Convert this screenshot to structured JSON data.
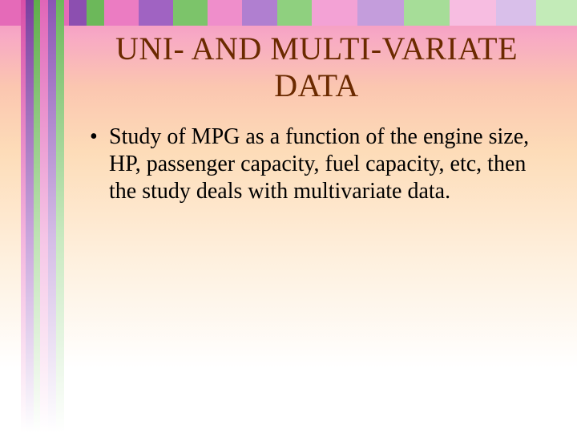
{
  "slide": {
    "title": "UNI- AND MULTI-VARIATE DATA",
    "bullet_1": "Study of MPG as a function of the engine size, HP, passenger capacity, fuel capacity, etc, then the study deals with multivariate data."
  },
  "colors": {
    "title_color": "#6b2a00",
    "body_text_color": "#000000",
    "bg_gradient_top": "#f18bbf",
    "bg_gradient_bottom": "#ffffff"
  },
  "top_band_segments": [
    {
      "width_pct": 4,
      "color": "#e56ab8"
    },
    {
      "width_pct": 2,
      "color": "#8c4fb0"
    },
    {
      "width_pct": 3,
      "color": "#6cb85a"
    },
    {
      "width_pct": 3,
      "color": "#e56ab8"
    },
    {
      "width_pct": 3,
      "color": "#8c4fb0"
    },
    {
      "width_pct": 3,
      "color": "#6cb85a"
    },
    {
      "width_pct": 6,
      "color": "#eb7cc2"
    },
    {
      "width_pct": 6,
      "color": "#a063c2"
    },
    {
      "width_pct": 6,
      "color": "#7cc46a"
    },
    {
      "width_pct": 6,
      "color": "#ef8ecb"
    },
    {
      "width_pct": 6,
      "color": "#b07fd0"
    },
    {
      "width_pct": 6,
      "color": "#8fd07f"
    },
    {
      "width_pct": 8,
      "color": "#f3a2d5"
    },
    {
      "width_pct": 8,
      "color": "#c49ddc"
    },
    {
      "width_pct": 8,
      "color": "#a6dd98"
    },
    {
      "width_pct": 8,
      "color": "#f7bde1"
    },
    {
      "width_pct": 7,
      "color": "#d9bfea"
    },
    {
      "width_pct": 7,
      "color": "#c3ebb8"
    }
  ]
}
